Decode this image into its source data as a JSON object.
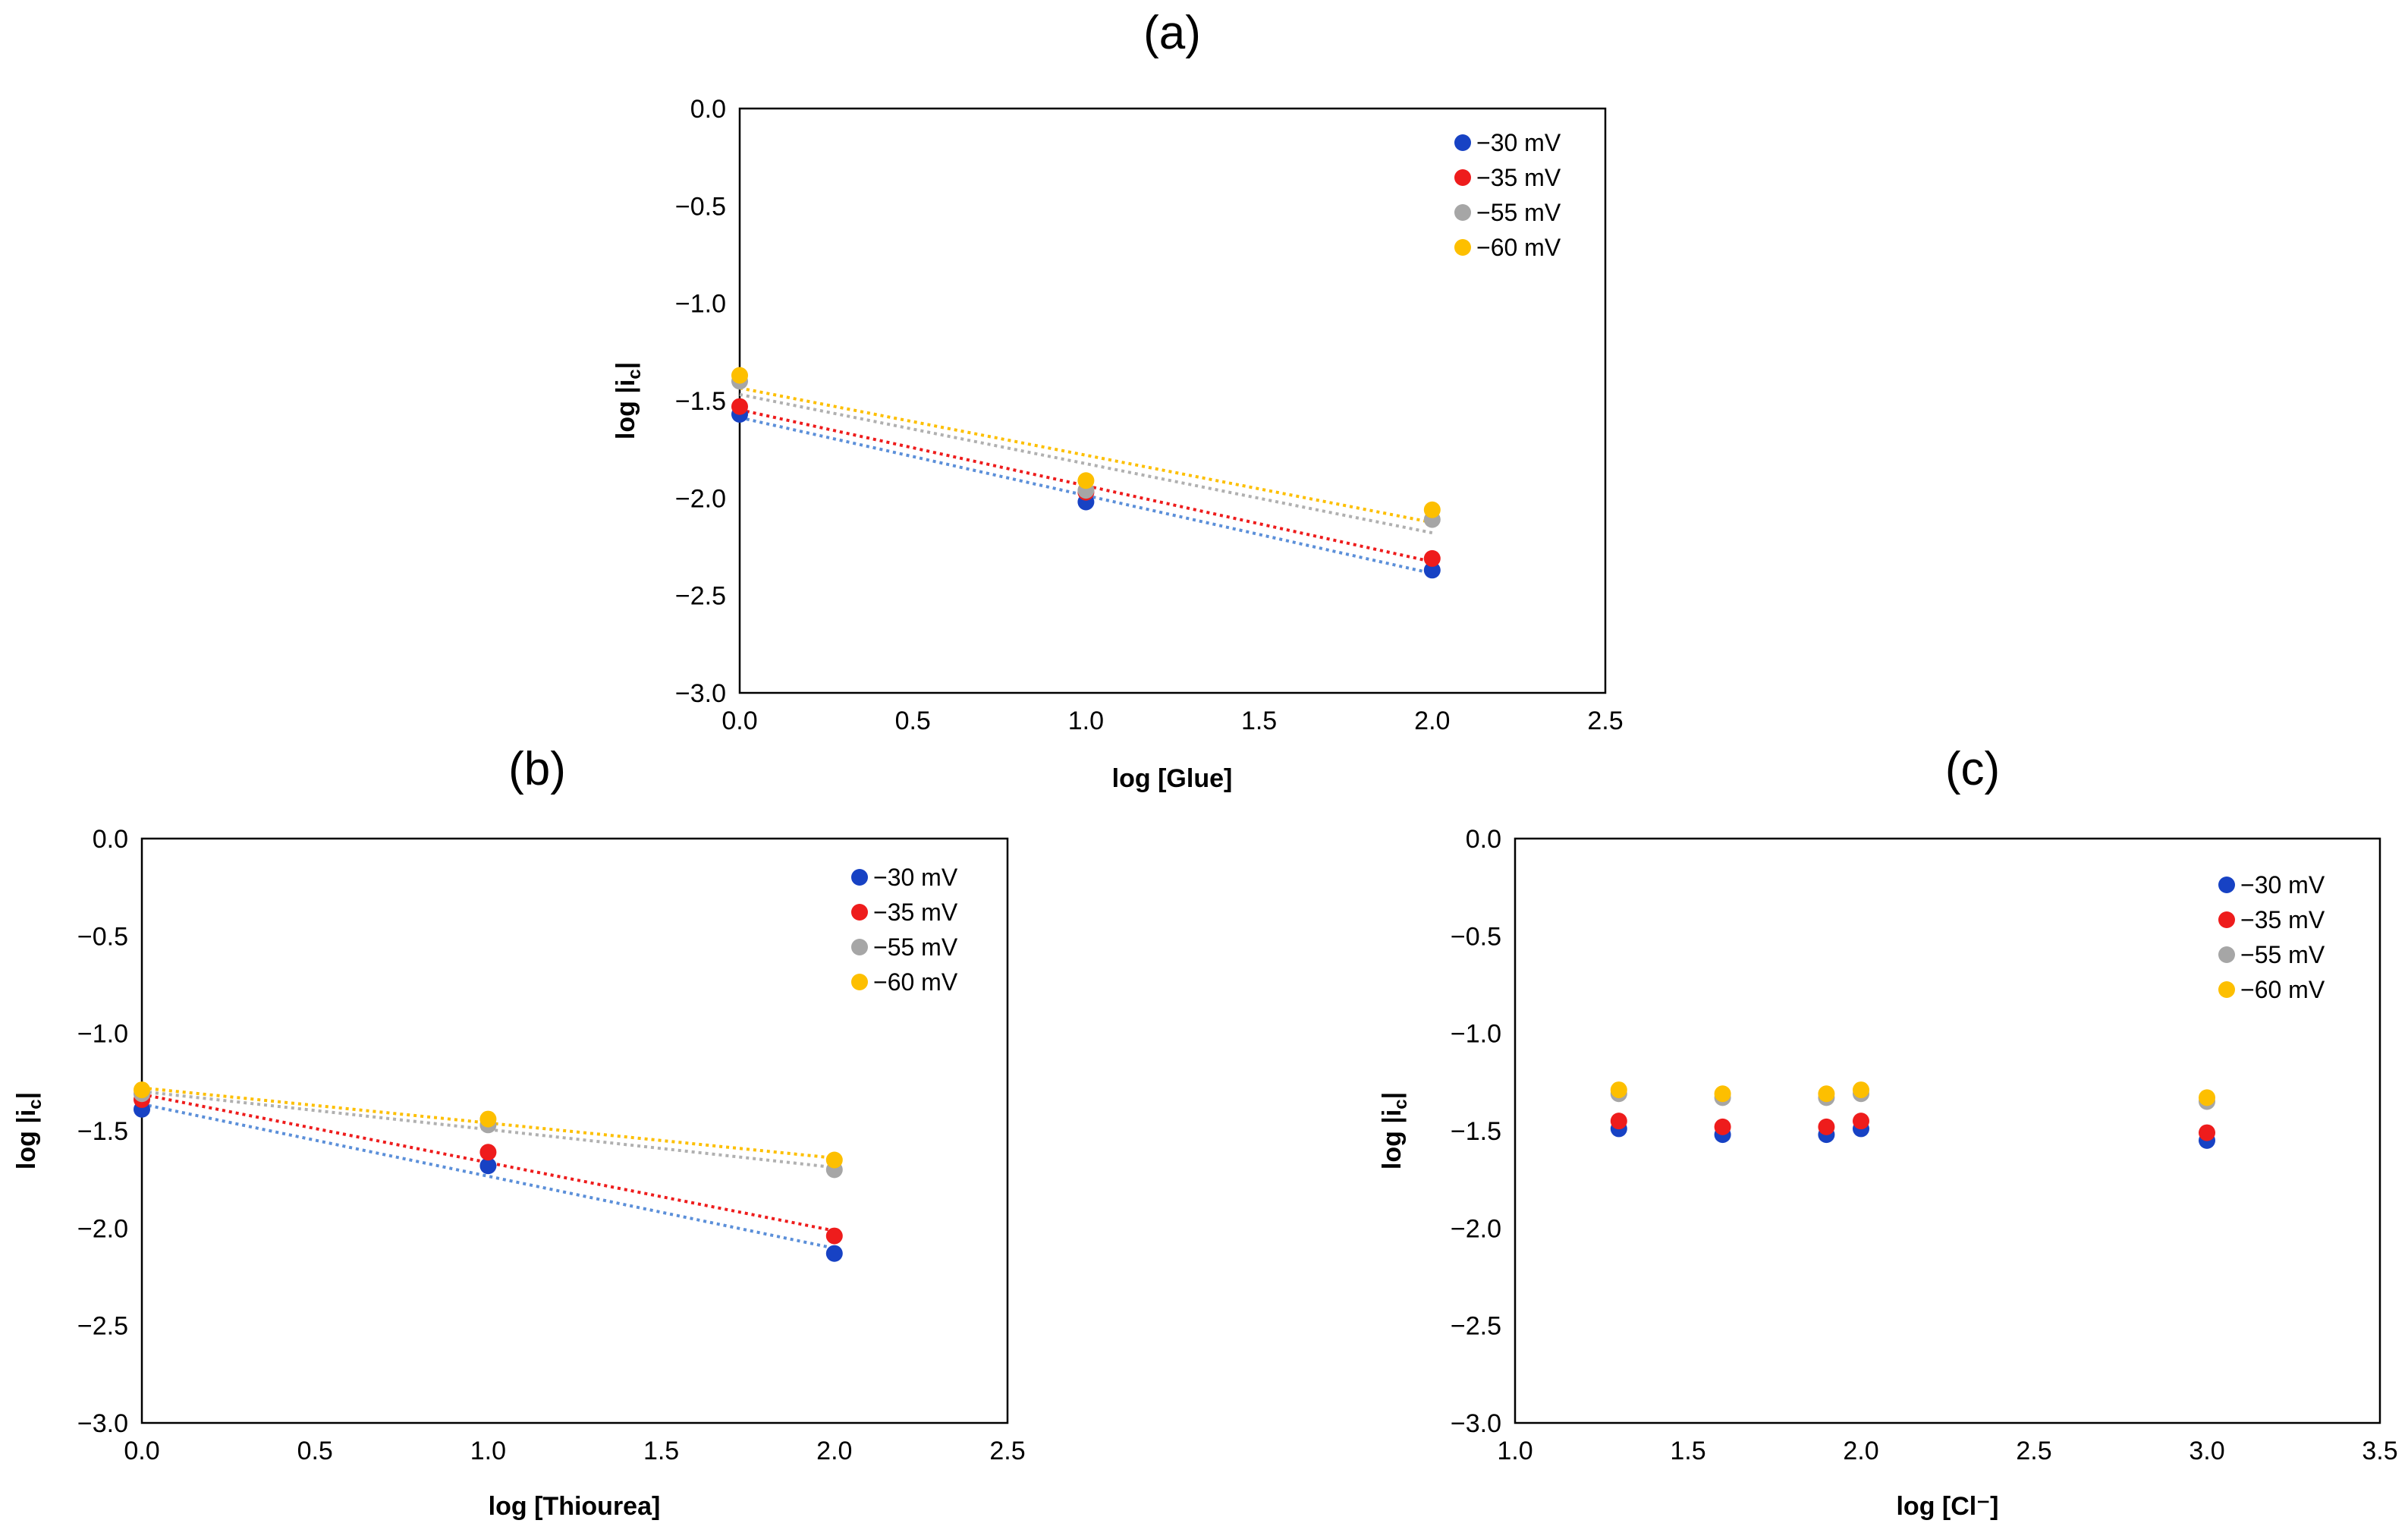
{
  "figure": {
    "series_names": [
      "−30 mV",
      "−35 mV",
      "−55 mV",
      "−60 mV"
    ],
    "colors": {
      "s30": "#1742c4",
      "s35": "#ee1c1c",
      "s55": "#a6a6a6",
      "s60": "#fdbf00",
      "trend30": "#5b8fd9",
      "trend35": "#ee1c1c",
      "trend55": "#b0b0b0",
      "trend60": "#fdbf00"
    }
  },
  "chart_data": [
    {
      "id": "a",
      "panel_label": "(a)",
      "type": "scatter",
      "xlabel": "log [Glue]",
      "ylabel_main": "log |i",
      "ylabel_sub": "c",
      "ylabel_end": "|",
      "xlim": [
        0,
        2.5
      ],
      "ylim": [
        -3,
        0
      ],
      "xticks": [
        "0.0",
        "0.5",
        "1.0",
        "1.5",
        "2.0",
        "2.5"
      ],
      "yticks": [
        "0.0",
        "−0.5",
        "−1.0",
        "−1.5",
        "−2.0",
        "−2.5",
        "−3.0"
      ],
      "legend_position": "top-right",
      "series": [
        {
          "name": "−30 mV",
          "x": [
            0,
            1,
            2
          ],
          "y": [
            -1.57,
            -2.02,
            -2.37
          ],
          "trendline": true
        },
        {
          "name": "−35 mV",
          "x": [
            0,
            1,
            2
          ],
          "y": [
            -1.53,
            -1.97,
            -2.31
          ],
          "trendline": true
        },
        {
          "name": "−55 mV",
          "x": [
            0,
            1,
            2
          ],
          "y": [
            -1.4,
            -1.96,
            -2.11
          ],
          "trendline": true
        },
        {
          "name": "−60 mV",
          "x": [
            0,
            1,
            2
          ],
          "y": [
            -1.37,
            -1.91,
            -2.06
          ],
          "trendline": true
        }
      ]
    },
    {
      "id": "b",
      "panel_label": "(b)",
      "type": "scatter",
      "xlabel": "log [Thiourea]",
      "ylabel_main": "log |i",
      "ylabel_sub": "c",
      "ylabel_end": "|",
      "xlim": [
        0,
        2.5
      ],
      "ylim": [
        -3,
        0
      ],
      "xticks": [
        "0.0",
        "0.5",
        "1.0",
        "1.5",
        "2.0",
        "2.5"
      ],
      "yticks": [
        "0.0",
        "−0.5",
        "−1.0",
        "−1.5",
        "−2.0",
        "−2.5",
        "−3.0"
      ],
      "legend_position": "top-right",
      "series": [
        {
          "name": "−30 mV",
          "x": [
            0,
            1,
            2
          ],
          "y": [
            -1.39,
            -1.68,
            -2.13
          ],
          "trendline": true
        },
        {
          "name": "−35 mV",
          "x": [
            0,
            1,
            2
          ],
          "y": [
            -1.34,
            -1.61,
            -2.04
          ],
          "trendline": true
        },
        {
          "name": "−55 mV",
          "x": [
            0,
            1,
            2
          ],
          "y": [
            -1.31,
            -1.47,
            -1.7
          ],
          "trendline": true
        },
        {
          "name": "−60 mV",
          "x": [
            0,
            1,
            2
          ],
          "y": [
            -1.29,
            -1.44,
            -1.65
          ],
          "trendline": true
        }
      ]
    },
    {
      "id": "c",
      "panel_label": "(c)",
      "type": "scatter",
      "xlabel": "log [Cl⁻]",
      "ylabel_main": "log |i",
      "ylabel_sub": "c",
      "ylabel_end": "|",
      "xlim": [
        1,
        3.5
      ],
      "ylim": [
        -3,
        0
      ],
      "xticks": [
        "1.0",
        "1.5",
        "2.0",
        "2.5",
        "3.0",
        "3.5"
      ],
      "yticks": [
        "0.0",
        "−0.5",
        "−1.0",
        "−1.5",
        "−2.0",
        "−2.5",
        "−3.0"
      ],
      "legend_position": "top-right",
      "series": [
        {
          "name": "−30 mV",
          "x": [
            1.3,
            1.6,
            1.9,
            2.0,
            3.0
          ],
          "y": [
            -1.49,
            -1.52,
            -1.52,
            -1.49,
            -1.55
          ],
          "trendline": false
        },
        {
          "name": "−35 mV",
          "x": [
            1.3,
            1.6,
            1.9,
            2.0,
            3.0
          ],
          "y": [
            -1.45,
            -1.48,
            -1.48,
            -1.45,
            -1.51
          ],
          "trendline": false
        },
        {
          "name": "−55 mV",
          "x": [
            1.3,
            1.6,
            1.9,
            2.0,
            3.0
          ],
          "y": [
            -1.31,
            -1.33,
            -1.33,
            -1.31,
            -1.35
          ],
          "trendline": false
        },
        {
          "name": "−60 mV",
          "x": [
            1.3,
            1.6,
            1.9,
            2.0,
            3.0
          ],
          "y": [
            -1.29,
            -1.31,
            -1.31,
            -1.29,
            -1.33
          ],
          "trendline": false
        }
      ]
    }
  ]
}
